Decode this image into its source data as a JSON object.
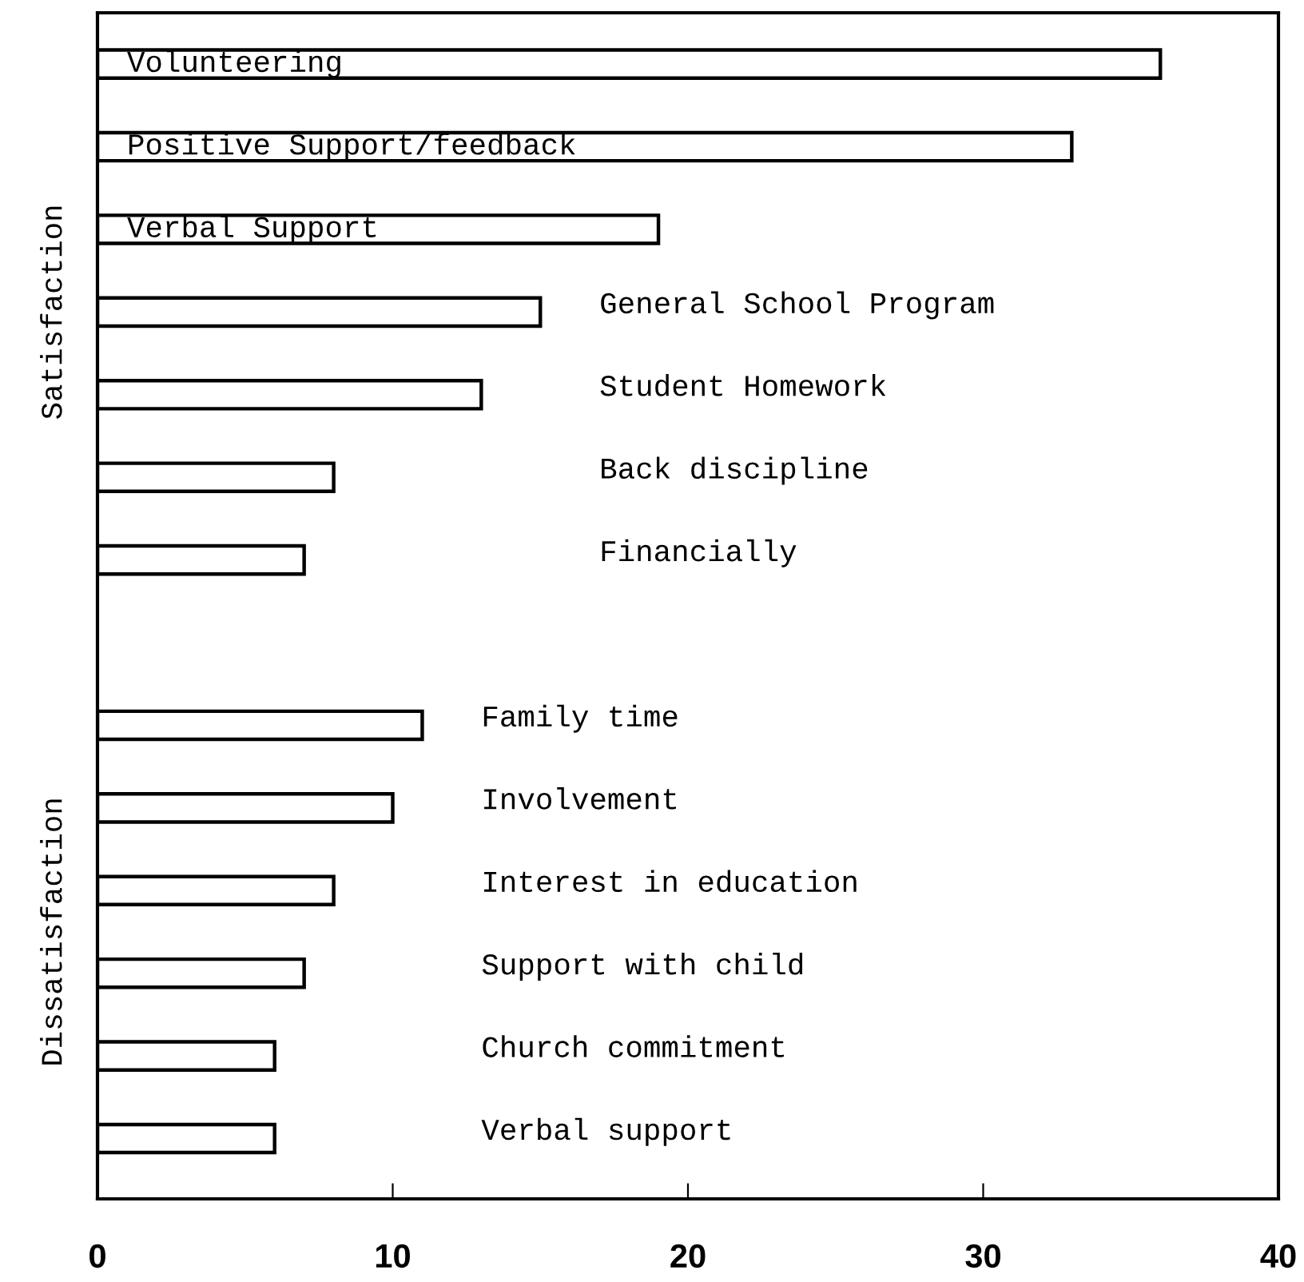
{
  "chart_data": {
    "type": "bar",
    "orientation": "horizontal",
    "categories": [
      "Volunteering",
      "Positive Support/feedback",
      "Verbal Support",
      "General School Program",
      "Student Homework",
      "Back discipline",
      "Financially",
      null,
      "Family time",
      "Involvement",
      "Interest in education",
      "Support with child",
      "Church commitment",
      "Verbal support"
    ],
    "values": [
      36,
      33,
      19,
      15,
      13,
      8,
      7,
      null,
      11,
      10,
      8,
      7,
      6,
      6
    ],
    "color": "#ffffff",
    "xlim": [
      0,
      40
    ],
    "xticks": [
      0,
      10,
      20,
      30,
      40
    ],
    "annotations": [
      "Satisfaction",
      "Dissatisfaction"
    ],
    "tick_labels": "x",
    "grid": false
  }
}
